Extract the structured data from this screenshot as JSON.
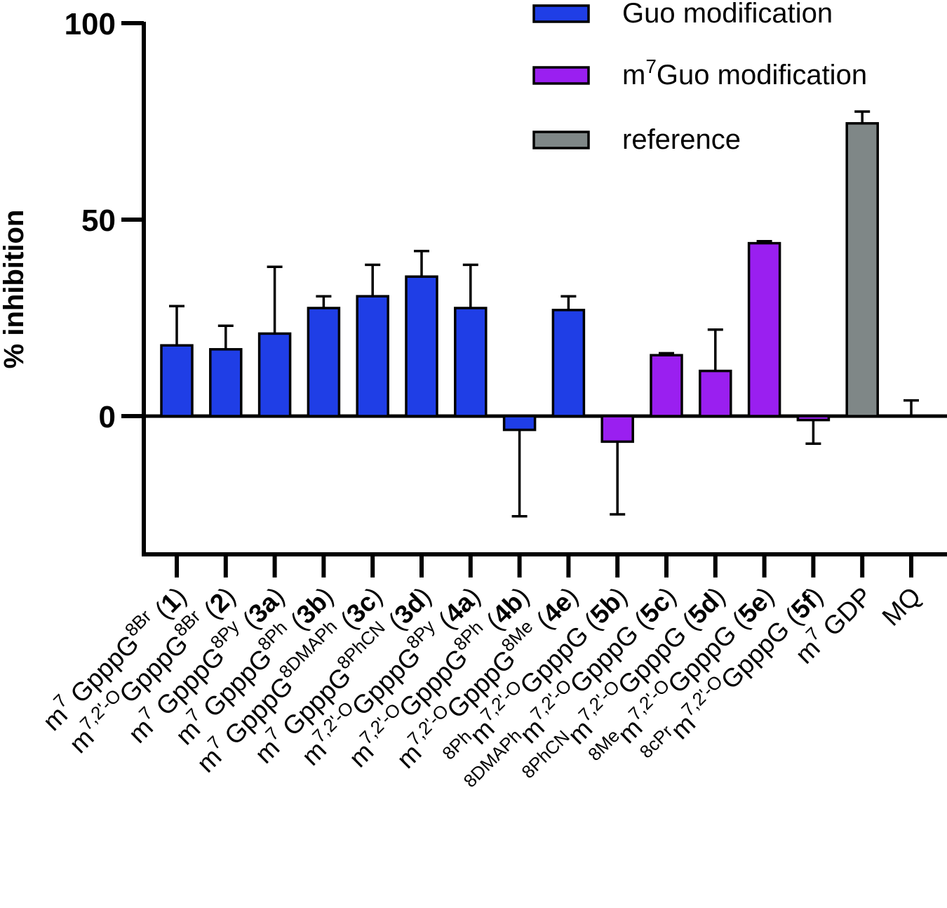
{
  "chart_data": {
    "type": "bar",
    "title": "",
    "xlabel": "",
    "ylabel": "% inhibition",
    "ylim": [
      -35,
      100
    ],
    "yticks": [
      0,
      50,
      100
    ],
    "grid": false,
    "legend_position": "top-right",
    "legend": [
      {
        "key": "guo",
        "label": "Guo modification",
        "color": "#1f3ee6"
      },
      {
        "key": "m7guo",
        "label_base": "m",
        "label_sup": "7",
        "label_rest": "Guo modification",
        "label": "m7Guo modification",
        "color": "#9a1ff0"
      },
      {
        "key": "ref",
        "label": "reference",
        "color": "#7f8787"
      }
    ],
    "categories": [
      {
        "group": "guo",
        "value": 18,
        "err_up": 10,
        "err_down": 0,
        "parts": [
          {
            "t": "m"
          },
          {
            "t": "7",
            "sup": true
          },
          {
            "t": " GpppG"
          },
          {
            "t": "8Br",
            "sup": true
          },
          {
            "t": " ("
          },
          {
            "t": "1",
            "b": true
          },
          {
            "t": ")"
          }
        ]
      },
      {
        "group": "guo",
        "value": 17,
        "err_up": 6,
        "err_down": 0,
        "parts": [
          {
            "t": "m"
          },
          {
            "t": "7,2'-O",
            "sup": true
          },
          {
            "t": "GpppG"
          },
          {
            "t": "8Br",
            "sup": true
          },
          {
            "t": " ("
          },
          {
            "t": "2",
            "b": true
          },
          {
            "t": ")"
          }
        ]
      },
      {
        "group": "guo",
        "value": 21,
        "err_up": 17,
        "err_down": 0,
        "parts": [
          {
            "t": "m"
          },
          {
            "t": "7",
            "sup": true
          },
          {
            "t": " GpppG"
          },
          {
            "t": "8Py",
            "sup": true
          },
          {
            "t": " ("
          },
          {
            "t": "3a",
            "b": true
          },
          {
            "t": ")"
          }
        ]
      },
      {
        "group": "guo",
        "value": 27.5,
        "err_up": 3,
        "err_down": 0,
        "parts": [
          {
            "t": "m"
          },
          {
            "t": "7",
            "sup": true
          },
          {
            "t": " GpppG"
          },
          {
            "t": "8Ph",
            "sup": true
          },
          {
            "t": " ("
          },
          {
            "t": "3b",
            "b": true
          },
          {
            "t": ")"
          }
        ]
      },
      {
        "group": "guo",
        "value": 30.5,
        "err_up": 8,
        "err_down": 0,
        "parts": [
          {
            "t": "m"
          },
          {
            "t": "7",
            "sup": true
          },
          {
            "t": " GpppG"
          },
          {
            "t": "8DMAPh",
            "sup": true
          },
          {
            "t": " ("
          },
          {
            "t": "3c",
            "b": true
          },
          {
            "t": ")"
          }
        ]
      },
      {
        "group": "guo",
        "value": 35.5,
        "err_up": 6.5,
        "err_down": 0,
        "parts": [
          {
            "t": "m"
          },
          {
            "t": "7",
            "sup": true
          },
          {
            "t": " GpppG"
          },
          {
            "t": "8PhCN",
            "sup": true
          },
          {
            "t": " ("
          },
          {
            "t": "3d",
            "b": true
          },
          {
            "t": ")"
          }
        ]
      },
      {
        "group": "guo",
        "value": 27.5,
        "err_up": 11,
        "err_down": 0,
        "parts": [
          {
            "t": "m"
          },
          {
            "t": "7,2'-O",
            "sup": true
          },
          {
            "t": "GpppG"
          },
          {
            "t": "8Py",
            "sup": true
          },
          {
            "t": " ("
          },
          {
            "t": "4a",
            "b": true
          },
          {
            "t": ")"
          }
        ]
      },
      {
        "group": "guo",
        "value": -3.5,
        "err_up": 0,
        "err_down": 22,
        "parts": [
          {
            "t": "m"
          },
          {
            "t": "7,2'-O",
            "sup": true
          },
          {
            "t": "GpppG"
          },
          {
            "t": "8Ph",
            "sup": true
          },
          {
            "t": " ("
          },
          {
            "t": "4b",
            "b": true
          },
          {
            "t": ")"
          }
        ]
      },
      {
        "group": "guo",
        "value": 27,
        "err_up": 3.5,
        "err_down": 0,
        "parts": [
          {
            "t": "m"
          },
          {
            "t": "7,2'-O",
            "sup": true
          },
          {
            "t": "GpppG"
          },
          {
            "t": "8Me",
            "sup": true
          },
          {
            "t": " ("
          },
          {
            "t": "4e",
            "b": true
          },
          {
            "t": ")"
          }
        ]
      },
      {
        "group": "m7guo",
        "value": -6.5,
        "err_up": 0,
        "err_down": 18.5,
        "parts": [
          {
            "t": "8Ph",
            "sup": true
          },
          {
            "t": "m"
          },
          {
            "t": "7,2'-O",
            "sup": true
          },
          {
            "t": "GpppG"
          },
          {
            "t": " ("
          },
          {
            "t": "5b",
            "b": true
          },
          {
            "t": ")"
          }
        ]
      },
      {
        "group": "m7guo",
        "value": 15.5,
        "err_up": 0.5,
        "err_down": 0,
        "parts": [
          {
            "t": "8DMAPh",
            "sup": true
          },
          {
            "t": "m"
          },
          {
            "t": "7,2'-O",
            "sup": true
          },
          {
            "t": "GpppG"
          },
          {
            "t": " ("
          },
          {
            "t": "5c",
            "b": true
          },
          {
            "t": ")"
          }
        ]
      },
      {
        "group": "m7guo",
        "value": 11.5,
        "err_up": 10.5,
        "err_down": 0,
        "parts": [
          {
            "t": "8PhCN",
            "sup": true
          },
          {
            "t": "m"
          },
          {
            "t": "7,2'-O",
            "sup": true
          },
          {
            "t": "GpppG"
          },
          {
            "t": " ("
          },
          {
            "t": "5d",
            "b": true
          },
          {
            "t": ")"
          }
        ]
      },
      {
        "group": "m7guo",
        "value": 44,
        "err_up": 0.5,
        "err_down": 0,
        "parts": [
          {
            "t": "8Me",
            "sup": true
          },
          {
            "t": "m"
          },
          {
            "t": "7,2'-O",
            "sup": true
          },
          {
            "t": "GpppG"
          },
          {
            "t": " ("
          },
          {
            "t": "5e",
            "b": true
          },
          {
            "t": ")"
          }
        ]
      },
      {
        "group": "m7guo",
        "value": -1,
        "err_up": 0,
        "err_down": 6,
        "parts": [
          {
            "t": "8cPr",
            "sup": true
          },
          {
            "t": "m"
          },
          {
            "t": "7,2'-O",
            "sup": true
          },
          {
            "t": "GpppG"
          },
          {
            "t": " ("
          },
          {
            "t": "5f",
            "b": true
          },
          {
            "t": ")"
          }
        ]
      },
      {
        "group": "ref",
        "value": 74.5,
        "err_up": 3,
        "err_down": 0,
        "parts": [
          {
            "t": "m"
          },
          {
            "t": "7",
            "sup": true
          },
          {
            "t": " GDP"
          }
        ]
      },
      {
        "group": "ref",
        "value": 0,
        "err_up": 4,
        "err_down": 0,
        "parts": [
          {
            "t": "MQ"
          }
        ]
      }
    ]
  }
}
